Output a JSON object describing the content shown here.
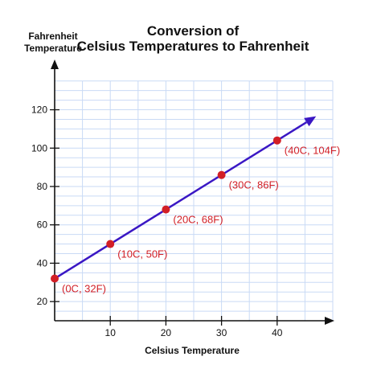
{
  "chart_data": {
    "type": "line",
    "title_lines": [
      "Conversion of",
      "Celsius Temperatures to Fahrenheit"
    ],
    "xlabel": "Celsius Temperature",
    "ylabel_lines": [
      "Fahrenheit",
      "Temperature"
    ],
    "xlim": [
      0,
      50
    ],
    "ylim": [
      10,
      135
    ],
    "x_ticks": [
      10,
      20,
      30,
      40
    ],
    "y_ticks": [
      20,
      40,
      60,
      80,
      100,
      120
    ],
    "grid": true,
    "arrow_end": {
      "x": 47,
      "y": 116.6
    },
    "series": [
      {
        "x": [
          0,
          10,
          20,
          30,
          40
        ],
        "y": [
          32,
          50,
          68,
          86,
          104
        ],
        "labels": [
          "(0C, 32F)",
          "(10C, 50F)",
          "(20C, 68F)",
          "(30C, 86F)",
          "(40C, 104F)"
        ]
      }
    ],
    "colors": {
      "line": "#3a17c4",
      "points": "#d21f26",
      "labels": "#d21f26",
      "grid": "#c9daf5"
    }
  }
}
